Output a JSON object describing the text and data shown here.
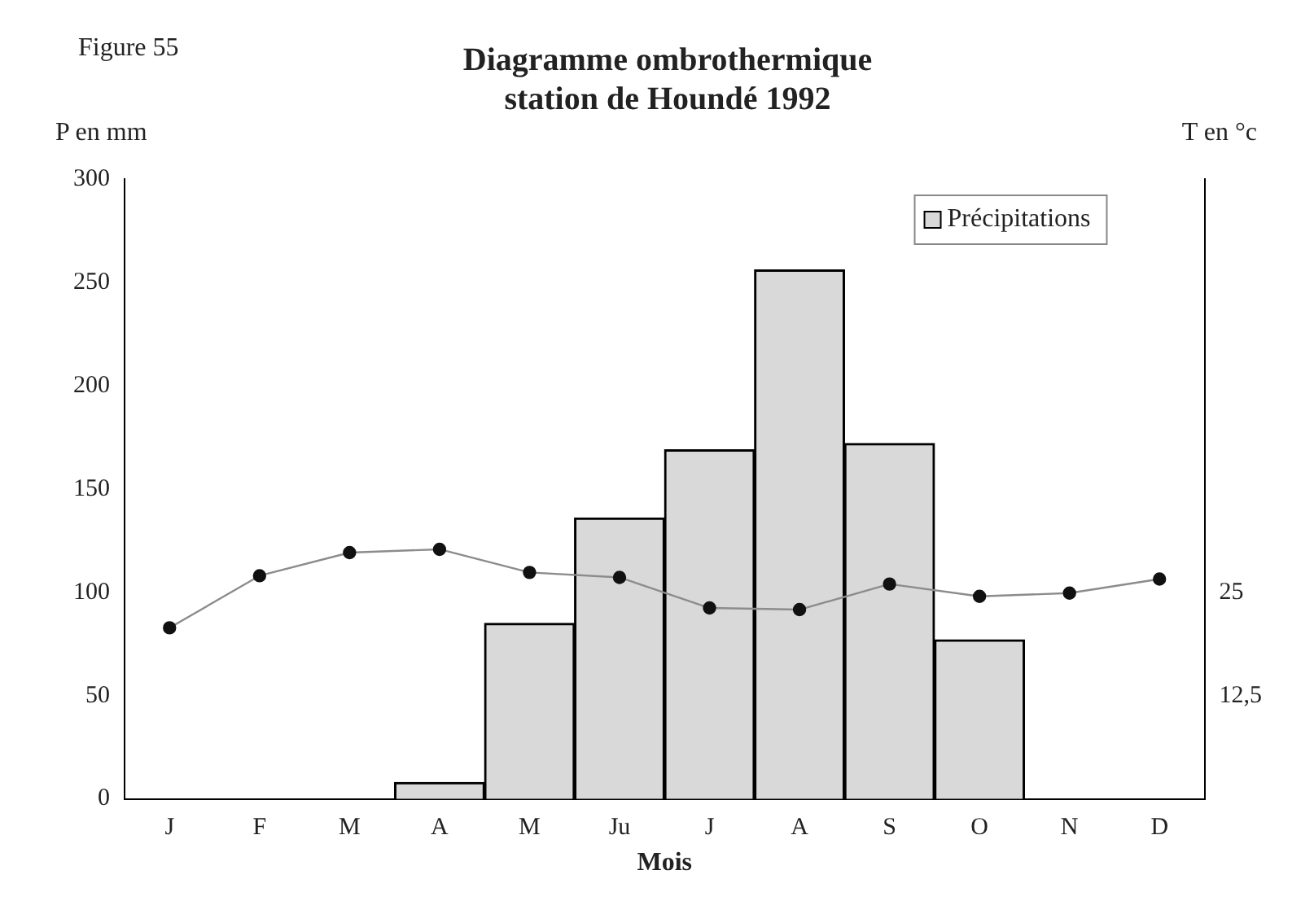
{
  "chart_data": {
    "type": "bar",
    "title": [
      "Diagramme ombrothermique",
      "station de Houndé 1992"
    ],
    "xlabel": "Mois",
    "ylabel": "P en mm",
    "y2label": "T en °c",
    "annotations": [
      "Figure 55"
    ],
    "categories": [
      "J",
      "F",
      "M",
      "A",
      "M",
      "Ju",
      "J",
      "A",
      "S",
      "O",
      "N",
      "D"
    ],
    "series": [
      {
        "name": "Précipitations",
        "color": "#d9d9d9",
        "values": [
          0,
          0,
          0,
          8,
          85,
          136,
          169,
          256,
          172,
          77,
          0,
          0
        ]
      },
      {
        "type": "line",
        "axis": "y2",
        "color": "#8c8c8c",
        "marker": "circle",
        "values": [
          20.7,
          27,
          29.8,
          30.2,
          27.4,
          26.8,
          23.1,
          22.9,
          26,
          24.5,
          24.9,
          26.6
        ]
      }
    ],
    "ylim": [
      0,
      300
    ],
    "yticks": [
      0,
      50,
      100,
      150,
      200,
      250,
      300
    ],
    "y2lim": [
      0,
      75
    ],
    "y2ticks": [
      {
        "value": 12.5,
        "label": "12,5"
      },
      25
    ],
    "grid": false,
    "legend": "top right"
  }
}
